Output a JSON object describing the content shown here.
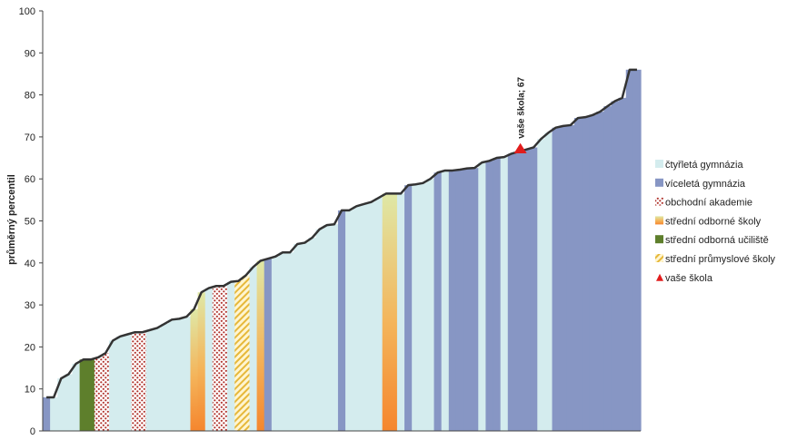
{
  "chart_data": {
    "type": "bar",
    "title": "",
    "xlabel": "",
    "ylabel": "průměrný percentil",
    "ylim": [
      0,
      100
    ],
    "yticks": [
      0,
      10,
      20,
      30,
      40,
      50,
      60,
      70,
      80,
      90,
      100
    ],
    "grid": false,
    "legend_position": "right",
    "series": [
      {
        "key": "ctyr",
        "name": "čtyřletá gymnázia",
        "color": "#d4ecee",
        "pattern": "solid"
      },
      {
        "key": "vice",
        "name": "víceletá gymnázia",
        "color": "#8796c4",
        "pattern": "solid"
      },
      {
        "key": "oa",
        "name": "obchodní akademie",
        "color": "#c0392b",
        "pattern": "dots"
      },
      {
        "key": "sos",
        "name": "střední odborné školy",
        "color": "#f4923a",
        "pattern": "gradient"
      },
      {
        "key": "sou",
        "name": "střední odborná učiliště",
        "color": "#5e7f2c",
        "pattern": "solid"
      },
      {
        "key": "sps",
        "name": "střední průmyslové školy",
        "color": "#e8c23a",
        "pattern": "hatch"
      },
      {
        "key": "vs",
        "name": "vaše škola",
        "color": "#e11d1d",
        "pattern": "marker"
      }
    ],
    "highlight": {
      "label": "vaše škola; 67",
      "value": 67
    },
    "values": [
      8,
      8,
      12.5,
      13.5,
      16,
      17,
      17,
      17.5,
      18.5,
      21.5,
      22.5,
      23,
      23.5,
      23.5,
      24,
      24.5,
      25.5,
      26.5,
      26.7,
      27.2,
      29,
      33,
      34,
      34.5,
      34.5,
      35.5,
      35.7,
      37,
      39,
      40.5,
      41,
      41.5,
      42.5,
      42.5,
      44.5,
      44.8,
      46,
      48,
      49,
      49.2,
      52.5,
      52.5,
      53.5,
      54,
      54.5,
      55.5,
      56.5,
      56.5,
      56.5,
      58.5,
      58.7,
      59,
      60,
      61.5,
      62,
      62,
      62.2,
      62.5,
      62.6,
      63.9,
      64.3,
      65,
      65.2,
      66,
      66.5,
      67,
      67.5,
      69.5,
      71,
      72.2,
      72.6,
      72.8,
      74.5,
      74.7,
      75.2,
      76,
      77.3,
      78.5,
      79.3,
      86,
      86
    ],
    "categories": [
      "vice",
      "ctyr",
      "ctyr",
      "ctyr",
      "ctyr",
      "sou",
      "sou",
      "oa",
      "oa",
      "ctyr",
      "ctyr",
      "ctyr",
      "oa",
      "oa",
      "ctyr",
      "ctyr",
      "ctyr",
      "ctyr",
      "ctyr",
      "ctyr",
      "sos",
      "sos",
      "ctyr",
      "oa",
      "oa",
      "ctyr",
      "sps",
      "sps",
      "ctyr",
      "sos",
      "vice",
      "ctyr",
      "ctyr",
      "ctyr",
      "ctyr",
      "ctyr",
      "ctyr",
      "ctyr",
      "ctyr",
      "ctyr",
      "vice",
      "ctyr",
      "ctyr",
      "ctyr",
      "ctyr",
      "ctyr",
      "sos",
      "sos",
      "ctyr",
      "vice",
      "ctyr",
      "ctyr",
      "ctyr",
      "vice",
      "ctyr",
      "vice",
      "vice",
      "vice",
      "vice",
      "ctyr",
      "vice",
      "vice",
      "ctyr",
      "vice",
      "vice",
      "vice",
      "vice",
      "ctyr",
      "ctyr",
      "vice",
      "vice",
      "vice",
      "vice",
      "vice",
      "vice",
      "vice",
      "vice",
      "vice",
      "vice",
      "vice",
      "vice"
    ]
  }
}
